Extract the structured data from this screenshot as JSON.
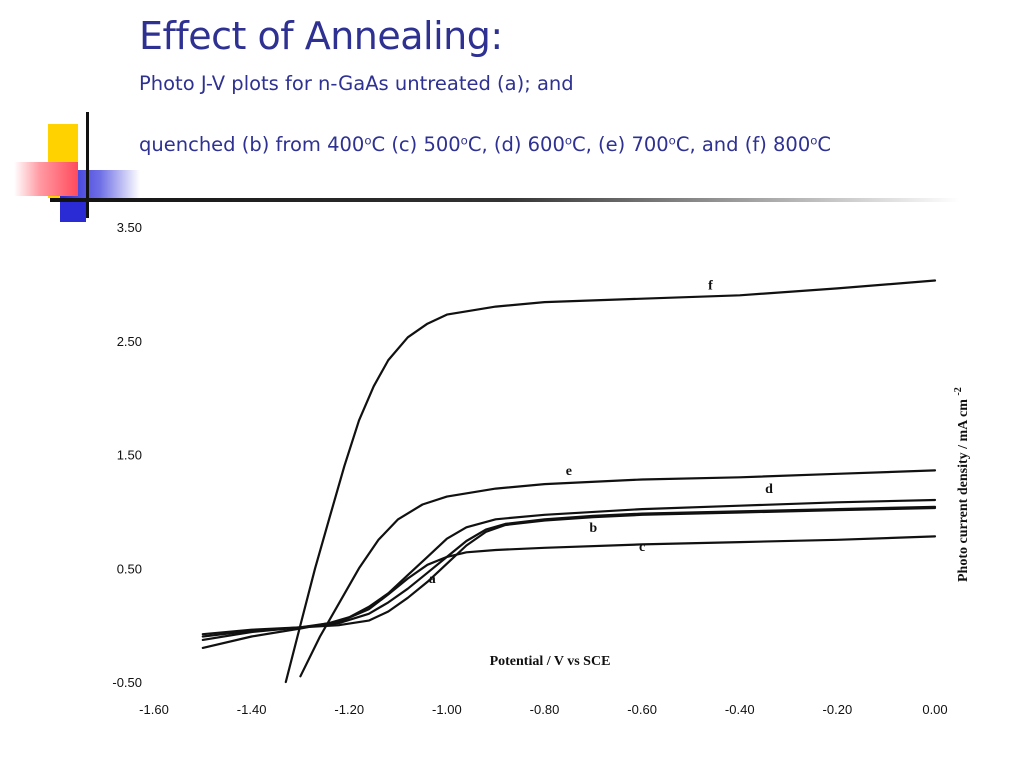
{
  "slide": {
    "title": "Effect of Annealing:",
    "subtitle_line1": "Photo J-V plots for n-GaAs untreated (a); and",
    "subtitle_line2": {
      "p1": "quenched (b) from 400",
      "s1": "o",
      "p2": "C (c) 500",
      "s2": "o",
      "p3": "C, (d) 600",
      "s3": "o",
      "p4": "C, (e) 700",
      "s4": "o",
      "p5": "C, and (f) 800",
      "s5": "o",
      "p6": "C"
    }
  },
  "colors": {
    "title": "#2e3192",
    "deco_yellow": "#ffd200",
    "deco_blue": "#2b2bd6",
    "deco_red": "#ff4b5c",
    "rule": "#111111"
  },
  "chart_data": {
    "type": "line",
    "xlabel": "Potential / V vs SCE",
    "ylabel": "Photo current density / mA cm",
    "ylabel_sup": "-2",
    "xlim": [
      -1.6,
      0.0
    ],
    "ylim": [
      -0.5,
      3.5
    ],
    "x_ticks": [
      "-1.60",
      "-1.40",
      "-1.20",
      "-1.00",
      "-0.80",
      "-0.60",
      "-0.40",
      "-0.20",
      "0.00"
    ],
    "y_ticks": [
      "-0.50",
      "0.50",
      "1.50",
      "2.50",
      "3.50"
    ],
    "grid": false,
    "legend": "inline curve labels",
    "series": [
      {
        "name": "a",
        "label_at": [
          -1.03,
          0.37
        ],
        "points": [
          [
            -1.5,
            -0.13
          ],
          [
            -1.4,
            -0.06
          ],
          [
            -1.3,
            -0.02
          ],
          [
            -1.22,
            0.0
          ],
          [
            -1.16,
            0.04
          ],
          [
            -1.12,
            0.12
          ],
          [
            -1.08,
            0.24
          ],
          [
            -1.04,
            0.38
          ],
          [
            -1.0,
            0.54
          ],
          [
            -0.96,
            0.7
          ],
          [
            -0.92,
            0.82
          ],
          [
            -0.88,
            0.88
          ],
          [
            -0.8,
            0.92
          ],
          [
            -0.7,
            0.95
          ],
          [
            -0.6,
            0.97
          ],
          [
            -0.4,
            0.99
          ],
          [
            -0.2,
            1.01
          ],
          [
            0.0,
            1.03
          ]
        ]
      },
      {
        "name": "b",
        "label_at": [
          -0.7,
          0.82
        ],
        "points": [
          [
            -1.5,
            -0.08
          ],
          [
            -1.4,
            -0.04
          ],
          [
            -1.3,
            -0.02
          ],
          [
            -1.22,
            0.02
          ],
          [
            -1.16,
            0.1
          ],
          [
            -1.12,
            0.2
          ],
          [
            -1.08,
            0.32
          ],
          [
            -1.04,
            0.46
          ],
          [
            -1.0,
            0.6
          ],
          [
            -0.96,
            0.74
          ],
          [
            -0.92,
            0.84
          ],
          [
            -0.88,
            0.89
          ],
          [
            -0.8,
            0.93
          ],
          [
            -0.7,
            0.96
          ],
          [
            -0.6,
            0.98
          ],
          [
            -0.4,
            1.0
          ],
          [
            -0.2,
            1.02
          ],
          [
            0.0,
            1.04
          ]
        ]
      },
      {
        "name": "c",
        "label_at": [
          -0.6,
          0.65
        ],
        "points": [
          [
            -1.5,
            -0.1
          ],
          [
            -1.4,
            -0.05
          ],
          [
            -1.3,
            -0.02
          ],
          [
            -1.22,
            0.03
          ],
          [
            -1.16,
            0.14
          ],
          [
            -1.12,
            0.27
          ],
          [
            -1.08,
            0.41
          ],
          [
            -1.04,
            0.53
          ],
          [
            -1.0,
            0.6
          ],
          [
            -0.96,
            0.64
          ],
          [
            -0.9,
            0.66
          ],
          [
            -0.8,
            0.68
          ],
          [
            -0.6,
            0.71
          ],
          [
            -0.4,
            0.73
          ],
          [
            -0.2,
            0.75
          ],
          [
            0.0,
            0.78
          ]
        ]
      },
      {
        "name": "d",
        "label_at": [
          -0.34,
          1.16
        ],
        "points": [
          [
            -1.5,
            -0.2
          ],
          [
            -1.4,
            -0.1
          ],
          [
            -1.3,
            -0.03
          ],
          [
            -1.24,
            0.02
          ],
          [
            -1.2,
            0.07
          ],
          [
            -1.16,
            0.16
          ],
          [
            -1.12,
            0.28
          ],
          [
            -1.08,
            0.44
          ],
          [
            -1.04,
            0.6
          ],
          [
            -1.0,
            0.76
          ],
          [
            -0.96,
            0.86
          ],
          [
            -0.9,
            0.93
          ],
          [
            -0.8,
            0.97
          ],
          [
            -0.6,
            1.02
          ],
          [
            -0.4,
            1.05
          ],
          [
            -0.2,
            1.08
          ],
          [
            0.0,
            1.1
          ]
        ]
      },
      {
        "name": "e",
        "label_at": [
          -0.75,
          1.32
        ],
        "points": [
          [
            -1.3,
            -0.45
          ],
          [
            -1.26,
            -0.1
          ],
          [
            -1.22,
            0.2
          ],
          [
            -1.18,
            0.5
          ],
          [
            -1.14,
            0.75
          ],
          [
            -1.1,
            0.93
          ],
          [
            -1.05,
            1.06
          ],
          [
            -1.0,
            1.13
          ],
          [
            -0.9,
            1.2
          ],
          [
            -0.8,
            1.24
          ],
          [
            -0.6,
            1.28
          ],
          [
            -0.4,
            1.3
          ],
          [
            -0.2,
            1.33
          ],
          [
            0.0,
            1.36
          ]
        ]
      },
      {
        "name": "f",
        "label_at": [
          -0.46,
          2.95
        ],
        "points": [
          [
            -1.33,
            -0.5
          ],
          [
            -1.3,
            0.0
          ],
          [
            -1.27,
            0.5
          ],
          [
            -1.24,
            0.95
          ],
          [
            -1.21,
            1.4
          ],
          [
            -1.18,
            1.8
          ],
          [
            -1.15,
            2.1
          ],
          [
            -1.12,
            2.33
          ],
          [
            -1.08,
            2.53
          ],
          [
            -1.04,
            2.65
          ],
          [
            -1.0,
            2.73
          ],
          [
            -0.9,
            2.8
          ],
          [
            -0.8,
            2.84
          ],
          [
            -0.6,
            2.87
          ],
          [
            -0.4,
            2.9
          ],
          [
            -0.2,
            2.96
          ],
          [
            0.0,
            3.03
          ]
        ]
      }
    ]
  }
}
